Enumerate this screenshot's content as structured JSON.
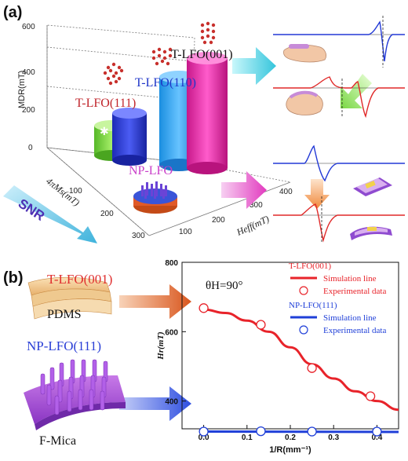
{
  "panels": {
    "a": "(a)",
    "b": "(b)"
  },
  "panel_a": {
    "axis_z_label": "MDR(mT)",
    "axis_z_ticks": [
      "0",
      "200",
      "400",
      "600"
    ],
    "axis_x_label": "4πMs(mT)",
    "axis_x_ticks": [
      "100",
      "200",
      "300"
    ],
    "axis_y_label": "Heff(mT)",
    "axis_y_ticks": [
      "100",
      "200",
      "300",
      "400"
    ],
    "bar_labels": {
      "t_lfo_111": "T-LFO(111)",
      "t_lfo_110": "T-LFO(110)",
      "t_lfo_001": "T-LFO(001)",
      "np_lfo": "NP-LFO"
    },
    "snr_label": "SNR",
    "colors": {
      "t_lfo_111": "#7ad23a",
      "t_lfo_111_top": "#2c3fd8",
      "t_lfo_110": "#3a9cf0",
      "t_lfo_001": "#ea2ea6",
      "np_lfo": "#e05a28",
      "label_red": "#c0252b",
      "label_blue": "#1f36c8",
      "label_magenta": "#c93ec9",
      "snr": "#4c2fb4"
    },
    "icons": [
      "crystal-lattice-icon",
      "hand-icon",
      "flexible-film-icon",
      "arrow-icon"
    ]
  },
  "panel_b": {
    "substrate_top": {
      "film": "T-LFO(001)",
      "substrate": "PDMS"
    },
    "substrate_bottom": {
      "film": "NP-LFO(111)",
      "substrate": "F-Mica"
    },
    "annotation": "θH=90°"
  },
  "chart_data": {
    "type": "line",
    "xlabel": "1/R(mm⁻¹)",
    "ylabel": "Hr(mT)",
    "xlim": [
      -0.05,
      0.45
    ],
    "ylim": [
      320,
      800
    ],
    "x_ticks": [
      0.0,
      0.1,
      0.2,
      0.3,
      0.4
    ],
    "x_tick_labels": [
      "0.0",
      "0.1",
      "0.2",
      "0.3",
      "0.4"
    ],
    "y_ticks": [
      400,
      600,
      800
    ],
    "y_tick_labels": [
      "400",
      "600",
      "800"
    ],
    "legend": [
      {
        "header": "T-LFO(001)",
        "line": "Simulation line",
        "marker": "Experimental data",
        "color": "#e8232a"
      },
      {
        "header": "NP-LFO(111)",
        "line": "Simulation line",
        "marker": "Experimental data",
        "color": "#1f3fd8"
      }
    ],
    "series": [
      {
        "name": "T-LFO(001) Simulation line",
        "color": "#e8232a",
        "kind": "line",
        "x": [
          0.0,
          0.05,
          0.1,
          0.15,
          0.2,
          0.25,
          0.3,
          0.35,
          0.4,
          0.45
        ],
        "y": [
          664,
          654,
          632,
          600,
          555,
          506,
          465,
          428,
          400,
          375
        ]
      },
      {
        "name": "T-LFO(001) Experimental data",
        "color": "#e8232a",
        "kind": "markers",
        "x": [
          0.0,
          0.132,
          0.25,
          0.385
        ],
        "y": [
          668,
          620,
          495,
          414
        ]
      },
      {
        "name": "NP-LFO(111) Simulation line",
        "color": "#1f3fd8",
        "kind": "line",
        "x": [
          -0.005,
          0.45
        ],
        "y": [
          312,
          311
        ]
      },
      {
        "name": "NP-LFO(111) Experimental data",
        "color": "#1f3fd8",
        "kind": "markers",
        "x": [
          0.0,
          0.132,
          0.25,
          0.4
        ],
        "y": [
          312,
          313,
          312,
          312
        ]
      }
    ]
  }
}
